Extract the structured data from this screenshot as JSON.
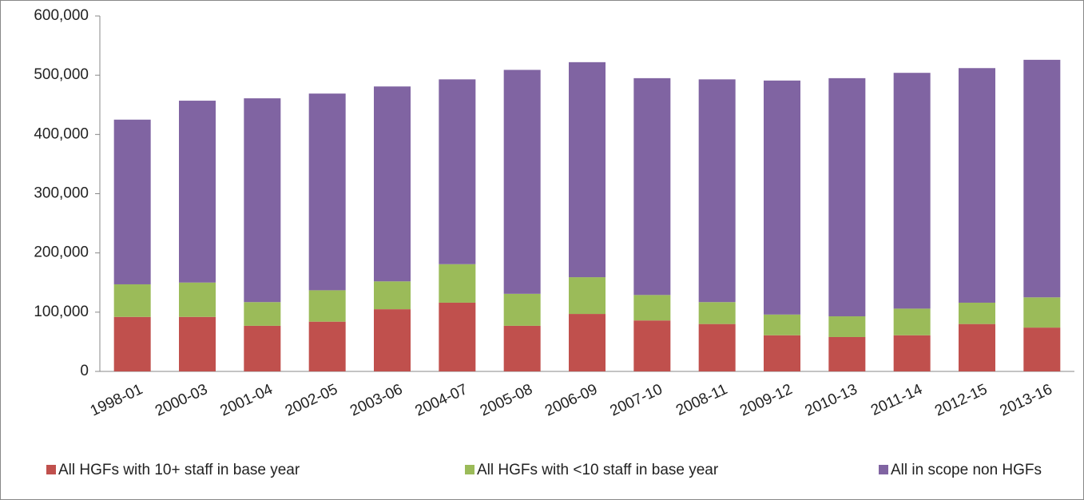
{
  "chart_data": {
    "type": "stacked_bar",
    "categories": [
      "1998-01",
      "2000-03",
      "2001-04",
      "2002-05",
      "2003-06",
      "2004-07",
      "2005-08",
      "2006-09",
      "2007-10",
      "2008-11",
      "2009-12",
      "2010-13",
      "2011-14",
      "2012-15",
      "2013-16"
    ],
    "series": [
      {
        "name": "All HGFs with 10+ staff in base year",
        "color": "#c0504d",
        "values": [
          92000,
          92000,
          77000,
          84000,
          105000,
          116000,
          77000,
          97000,
          86000,
          80000,
          61000,
          58000,
          61000,
          80000,
          74000
        ]
      },
      {
        "name": "All HGFs with <10 staff in base year",
        "color": "#9bbb59",
        "values": [
          55000,
          58000,
          40000,
          53000,
          47000,
          65000,
          54000,
          62000,
          43000,
          37000,
          35000,
          35000,
          45000,
          36000,
          51000
        ]
      },
      {
        "name": "All in scope non HGFs",
        "color": "#8064a2",
        "values": [
          278000,
          307000,
          344000,
          332000,
          329000,
          312000,
          378000,
          363000,
          366000,
          376000,
          395000,
          402000,
          398000,
          396000,
          401000
        ]
      }
    ],
    "ylim": [
      0,
      600000
    ],
    "yticks": [
      0,
      {
        "value": 100000,
        "label": "100,000"
      },
      {
        "value": 200000,
        "label": "200,000"
      },
      {
        "value": 300000,
        "label": "300,000"
      },
      {
        "value": 400000,
        "label": "400,000"
      },
      {
        "value": 500000,
        "label": "500,000"
      },
      {
        "value": 600000,
        "label": "600,000"
      }
    ],
    "grid": false,
    "legend": "bottom"
  }
}
